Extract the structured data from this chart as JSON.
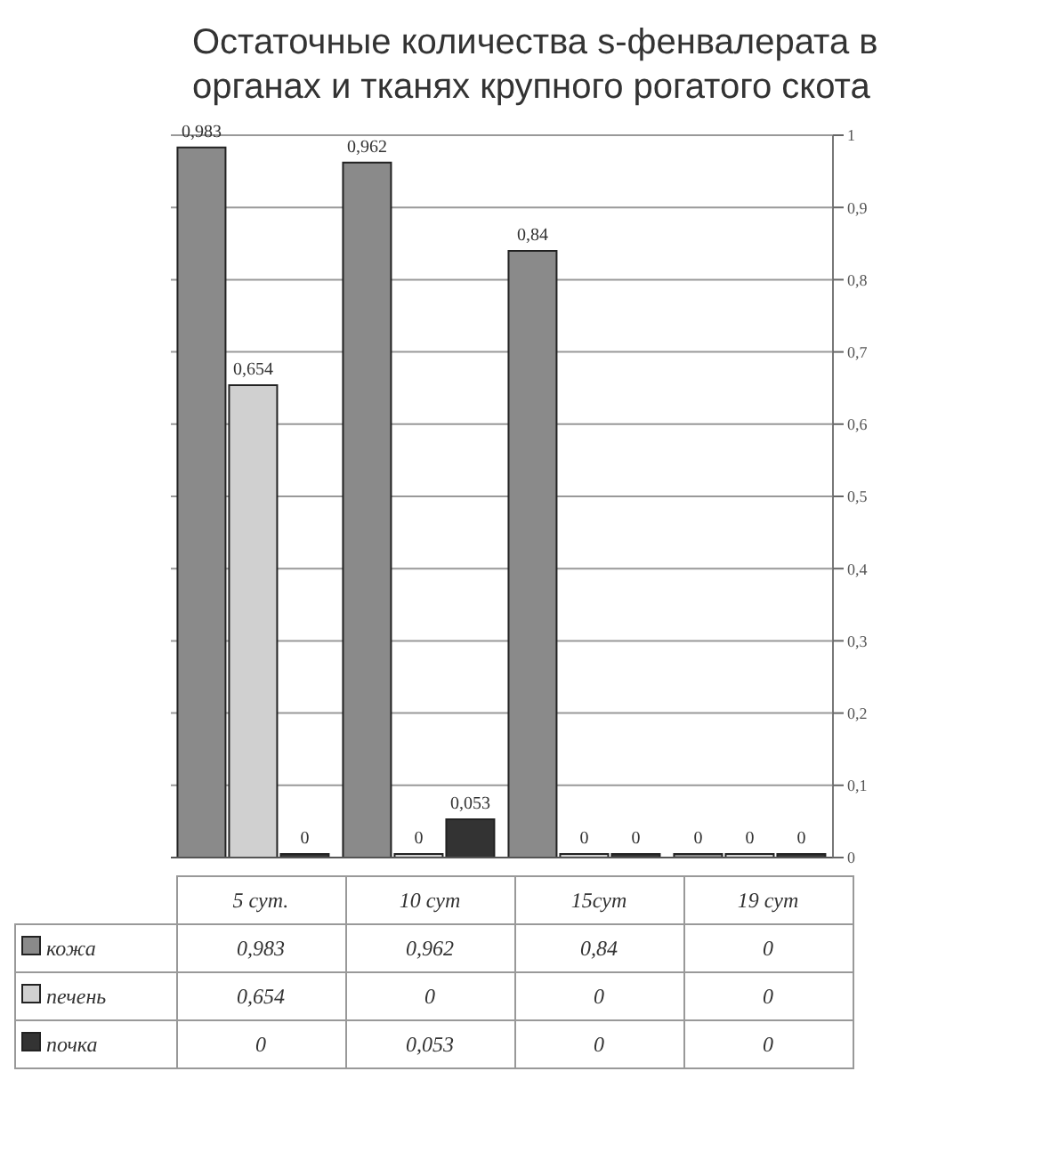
{
  "chart_data": {
    "type": "bar",
    "title": "Остаточные количества s-фенвалерата в органах и тканях крупного рогатого скота",
    "categories": [
      "5 сут.",
      "10 сут",
      "15сут",
      "19 сут"
    ],
    "series": [
      {
        "name": "кожа",
        "color": "#8a8a8a",
        "values": [
          0.983,
          0.962,
          0.84,
          0
        ],
        "value_labels": [
          "0,983",
          "0,962",
          "0,84",
          "0"
        ]
      },
      {
        "name": "печень",
        "color": "#d0d0d0",
        "values": [
          0.654,
          0,
          0,
          0
        ],
        "value_labels": [
          "0,654",
          "0",
          "0",
          "0"
        ]
      },
      {
        "name": "почка",
        "color": "#333333",
        "values": [
          0,
          0.053,
          0,
          0
        ],
        "value_labels": [
          "0",
          "0,053",
          "0",
          "0"
        ]
      }
    ],
    "ylim": [
      0,
      1
    ],
    "yticks": [
      0,
      {
        "value": 0.1,
        "label": "0,1"
      },
      {
        "value": 0.2,
        "label": "0,2"
      },
      {
        "value": 0.3,
        "label": "0,3"
      },
      {
        "value": 0.4,
        "label": "0,4"
      },
      {
        "value": 0.5,
        "label": "0,5"
      },
      {
        "value": 0.6,
        "label": "0,6"
      },
      {
        "value": 0.7,
        "label": "0,7"
      },
      {
        "value": 0.8,
        "label": "0,8"
      },
      {
        "value": 0.9,
        "label": "0,9"
      },
      1
    ],
    "grid": "y",
    "data_labels": true,
    "legend": "bottom"
  }
}
